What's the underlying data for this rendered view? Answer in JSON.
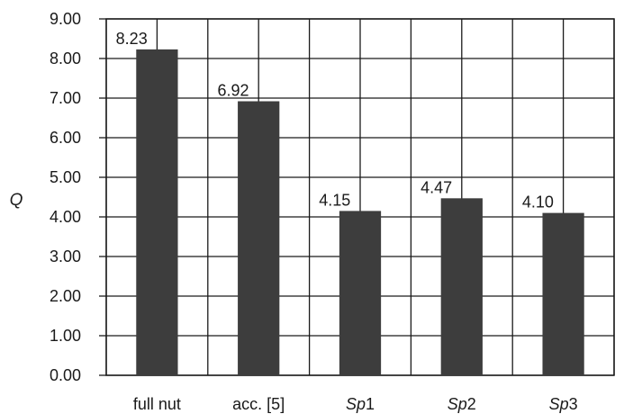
{
  "chart_data": {
    "type": "bar",
    "categories": [
      "full nut",
      "acc. [5]",
      "Sp1",
      "Sp2",
      "Sp3"
    ],
    "category_parts": [
      [
        {
          "text": "full nut",
          "italic": false
        }
      ],
      [
        {
          "text": "acc. [5]",
          "italic": false
        }
      ],
      [
        {
          "text": "Sp",
          "italic": true
        },
        {
          "text": "1",
          "italic": false
        }
      ],
      [
        {
          "text": "Sp",
          "italic": true
        },
        {
          "text": "2",
          "italic": false
        }
      ],
      [
        {
          "text": "Sp",
          "italic": true
        },
        {
          "text": "3",
          "italic": false
        }
      ]
    ],
    "values": [
      8.23,
      6.92,
      4.15,
      4.47,
      4.1
    ],
    "data_labels": [
      "8.23",
      "6.92",
      "4.15",
      "4.47",
      "4.10"
    ],
    "title": "",
    "xlabel": "",
    "ylabel": "Q",
    "ylim": [
      0,
      9
    ],
    "yticks": [
      "0.00",
      "1.00",
      "2.00",
      "3.00",
      "4.00",
      "5.00",
      "6.00",
      "7.00",
      "8.00",
      "9.00"
    ],
    "grid": true,
    "bar_color": "#3d3d3d"
  }
}
